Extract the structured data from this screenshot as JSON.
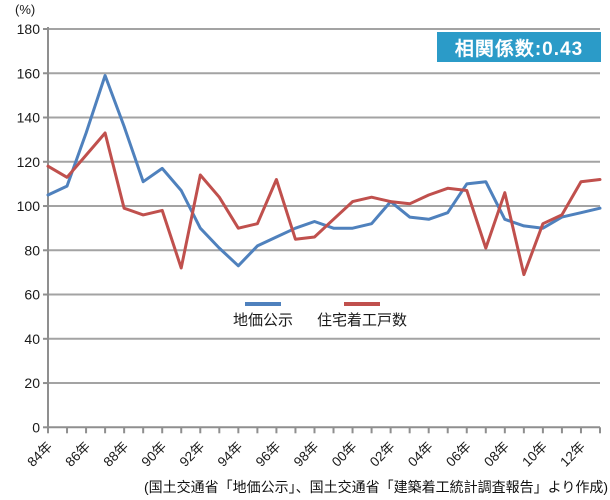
{
  "header": {
    "y_axis_unit": "(%)"
  },
  "correlation_badge": {
    "label": "相関係数:0.43",
    "bg_color": "#2B9BC8",
    "text_color": "#FFFFFF"
  },
  "legend": {
    "items": [
      {
        "label": "地価公示",
        "color": "#4F81BD"
      },
      {
        "label": "住宅着工戸数",
        "color": "#C0504D"
      }
    ]
  },
  "caption": "(国土交通省「地価公示」、国土交通省「建築着工統計調査報告」より作成)",
  "chart_data": {
    "type": "line",
    "title": "",
    "xlabel": "",
    "ylabel": "(%)",
    "ylim": [
      0,
      180
    ],
    "y_tick_step": 20,
    "grid": true,
    "grid_color": "#A3A3A3",
    "axis_color": "#8F8F8F",
    "tick_label_color": "#1a1a1a",
    "legend_position": "inside-center",
    "x_label_every": 2,
    "categories": [
      "84年",
      "85年",
      "86年",
      "87年",
      "88年",
      "89年",
      "90年",
      "91年",
      "92年",
      "93年",
      "94年",
      "95年",
      "96年",
      "97年",
      "98年",
      "99年",
      "00年",
      "01年",
      "02年",
      "03年",
      "04年",
      "05年",
      "06年",
      "07年",
      "08年",
      "09年",
      "10年",
      "11年",
      "12年",
      "13年"
    ],
    "series": [
      {
        "name": "地価公示",
        "color": "#4F81BD",
        "values": [
          105,
          109,
          133,
          159,
          136,
          111,
          117,
          107,
          90,
          81,
          73,
          82,
          86,
          90,
          93,
          90,
          90,
          92,
          102,
          95,
          94,
          97,
          110,
          111,
          94,
          91,
          90,
          95,
          97,
          99
        ]
      },
      {
        "name": "住宅着工戸数",
        "color": "#C0504D",
        "values": [
          118,
          113,
          123,
          133,
          99,
          96,
          98,
          72,
          114,
          104,
          90,
          92,
          112,
          85,
          86,
          94,
          102,
          104,
          102,
          101,
          105,
          108,
          107,
          81,
          106,
          69,
          92,
          96,
          111,
          112
        ]
      }
    ]
  }
}
